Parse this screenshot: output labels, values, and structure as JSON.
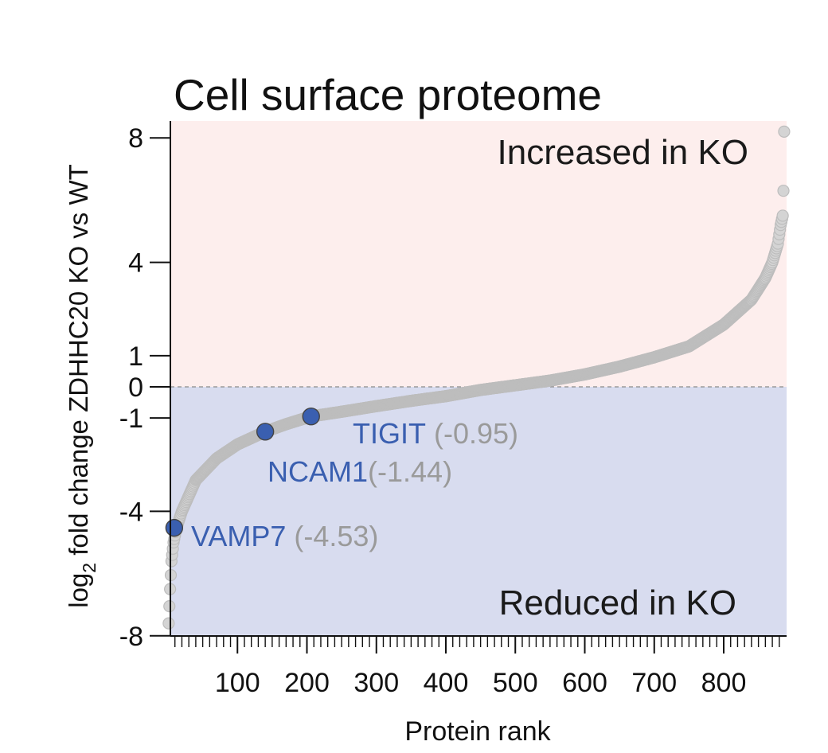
{
  "chart_data": {
    "type": "scatter",
    "title": "Cell surface proteome",
    "xlabel": "Protein rank",
    "ylabel_main": "log",
    "ylabel_sub": "2",
    "ylabel_rest": " fold change ZDHHC20 KO vs WT",
    "xlim": [
      0,
      887
    ],
    "ylim": [
      -8,
      8.5
    ],
    "x_ticks": [
      100,
      200,
      300,
      400,
      500,
      600,
      700,
      800
    ],
    "x_minor_step": 10,
    "y_ticks": [
      {
        "value": 8,
        "label": "8"
      },
      {
        "value": 4,
        "label": "4"
      },
      {
        "value": 1,
        "label": "1"
      },
      {
        "value": 0,
        "label": "0"
      },
      {
        "value": -1,
        "label": "-1"
      },
      {
        "value": -4,
        "label": "-4"
      },
      {
        "value": -8,
        "label": "-8"
      }
    ],
    "regions": [
      {
        "label": "Increased in KO",
        "from": 0,
        "to": 8.5,
        "color": "#fdeeed"
      },
      {
        "label": "Reduced in KO",
        "from": -8,
        "to": 0,
        "color": "#d8dcef"
      }
    ],
    "reference_line": 0,
    "n_points": 887,
    "curve_anchors": [
      [
        1,
        -7.6
      ],
      [
        3,
        -6.5
      ],
      [
        5,
        -5.6
      ],
      [
        8,
        -5.0
      ],
      [
        12,
        -4.55
      ],
      [
        20,
        -4.0
      ],
      [
        40,
        -3.0
      ],
      [
        70,
        -2.3
      ],
      [
        100,
        -1.85
      ],
      [
        140,
        -1.44
      ],
      [
        170,
        -1.2
      ],
      [
        206,
        -0.95
      ],
      [
        250,
        -0.8
      ],
      [
        300,
        -0.62
      ],
      [
        350,
        -0.45
      ],
      [
        400,
        -0.3
      ],
      [
        450,
        -0.1
      ],
      [
        500,
        0.05
      ],
      [
        550,
        0.2
      ],
      [
        600,
        0.4
      ],
      [
        650,
        0.65
      ],
      [
        700,
        0.95
      ],
      [
        750,
        1.3
      ],
      [
        800,
        2.0
      ],
      [
        840,
        2.8
      ],
      [
        860,
        3.5
      ],
      [
        870,
        4.0
      ],
      [
        878,
        4.6
      ],
      [
        882,
        5.2
      ],
      [
        885,
        5.5
      ],
      [
        886,
        6.3
      ],
      [
        887,
        8.2
      ]
    ],
    "point_color": "#d4d4d4",
    "point_stroke": "#bdbdbd",
    "highlight_color": "#3a5fb0",
    "highlights": [
      {
        "name": "VAMP7",
        "value_label": "(-4.53)",
        "rank": 9,
        "value": -4.53
      },
      {
        "name": "NCAM1",
        "value_label": "(-1.44)",
        "rank": 140,
        "value": -1.44
      },
      {
        "name": "TIGIT",
        "value_label": "(-0.95)",
        "rank": 206,
        "value": -0.95
      }
    ]
  }
}
